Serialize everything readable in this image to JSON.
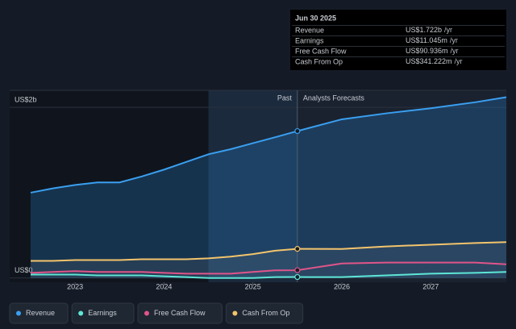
{
  "chart_data": {
    "type": "line",
    "x": [
      2022.5,
      2022.75,
      2023,
      2023.25,
      2023.5,
      2023.75,
      2024,
      2024.25,
      2024.5,
      2024.75,
      2025,
      2025.25,
      2025.5,
      2026,
      2026.5,
      2027,
      2027.5,
      2027.85
    ],
    "series": [
      {
        "name": "Revenue",
        "color": "#3a9ff0",
        "values": [
          1.0,
          1.05,
          1.09,
          1.12,
          1.12,
          1.19,
          1.27,
          1.36,
          1.45,
          1.51,
          1.58,
          1.65,
          1.722,
          1.86,
          1.93,
          1.99,
          2.06,
          2.12
        ]
      },
      {
        "name": "Earnings",
        "color": "#5ee6d6",
        "values": [
          0.04,
          0.04,
          0.04,
          0.03,
          0.03,
          0.03,
          0.02,
          0.01,
          0.0,
          0.0,
          0.0,
          0.01,
          0.011,
          0.01,
          0.03,
          0.05,
          0.06,
          0.07
        ]
      },
      {
        "name": "Free Cash Flow",
        "color": "#e0558a",
        "values": [
          0.06,
          0.07,
          0.08,
          0.07,
          0.07,
          0.07,
          0.06,
          0.05,
          0.05,
          0.05,
          0.07,
          0.09,
          0.091,
          0.17,
          0.18,
          0.18,
          0.18,
          0.16
        ]
      },
      {
        "name": "Cash From Op",
        "color": "#f3c46c",
        "values": [
          0.2,
          0.2,
          0.21,
          0.21,
          0.21,
          0.22,
          0.22,
          0.22,
          0.23,
          0.25,
          0.28,
          0.32,
          0.341,
          0.34,
          0.37,
          0.39,
          0.41,
          0.42
        ]
      }
    ],
    "xlim": [
      2022.5,
      2027.85
    ],
    "xticks": [
      2023,
      2024,
      2025,
      2026,
      2027
    ],
    "ylim": [
      -0.05,
      2.2
    ],
    "yticks": [
      {
        "value": 0,
        "label": "US$0"
      },
      {
        "value": 2,
        "label": "US$2b"
      }
    ],
    "annotations": [
      "Past",
      "Analysts Forecasts"
    ],
    "tooltip": {
      "title": "Jun 30 2025",
      "rows": [
        {
          "label": "Revenue",
          "value": "US$1.722b",
          "unit": "/yr"
        },
        {
          "label": "Earnings",
          "value": "US$11.045m",
          "unit": "/yr"
        },
        {
          "label": "Free Cash Flow",
          "value": "US$90.936m",
          "unit": "/yr"
        },
        {
          "label": "Cash From Op",
          "value": "US$341.222m",
          "unit": "/yr"
        }
      ]
    },
    "legend": "bottom-left"
  }
}
